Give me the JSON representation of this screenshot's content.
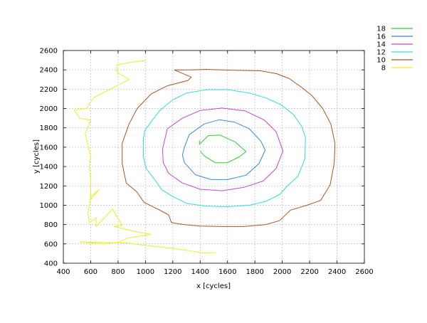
{
  "chart_data": {
    "type": "line",
    "title": "",
    "xlabel": "x [cycles]",
    "ylabel": "y [cycles]",
    "xlim": [
      400,
      2600
    ],
    "ylim": [
      400,
      2600
    ],
    "xticks": [
      400,
      600,
      800,
      1000,
      1200,
      1400,
      1600,
      1800,
      2000,
      2200,
      2400,
      2600
    ],
    "yticks": [
      400,
      600,
      800,
      1000,
      1200,
      1400,
      1600,
      1800,
      2000,
      2200,
      2400,
      2600
    ],
    "grid": true,
    "legend_position": "top-right",
    "series": [
      {
        "name": "18",
        "color": "#33cc33",
        "points": [
          [
            1395,
            1670
          ],
          [
            1395,
            1630
          ],
          [
            1460,
            1720
          ],
          [
            1545,
            1725
          ],
          [
            1655,
            1655
          ],
          [
            1735,
            1555
          ],
          [
            1685,
            1500
          ],
          [
            1600,
            1440
          ],
          [
            1510,
            1440
          ],
          [
            1430,
            1510
          ],
          [
            1400,
            1560
          ]
        ]
      },
      {
        "name": "16",
        "color": "#3388ee",
        "points": [
          [
            1285,
            1600
          ],
          [
            1320,
            1730
          ],
          [
            1430,
            1840
          ],
          [
            1540,
            1885
          ],
          [
            1650,
            1860
          ],
          [
            1760,
            1790
          ],
          [
            1845,
            1660
          ],
          [
            1875,
            1570
          ],
          [
            1830,
            1430
          ],
          [
            1735,
            1310
          ],
          [
            1600,
            1265
          ],
          [
            1480,
            1265
          ],
          [
            1365,
            1315
          ],
          [
            1285,
            1440
          ],
          [
            1270,
            1520
          ],
          [
            1285,
            1600
          ]
        ]
      },
      {
        "name": "14",
        "color": "#cc44cc",
        "points": [
          [
            1125,
            1580
          ],
          [
            1160,
            1790
          ],
          [
            1270,
            1900
          ],
          [
            1400,
            1980
          ],
          [
            1560,
            2005
          ],
          [
            1730,
            1975
          ],
          [
            1870,
            1880
          ],
          [
            1955,
            1760
          ],
          [
            2005,
            1560
          ],
          [
            1955,
            1380
          ],
          [
            1860,
            1250
          ],
          [
            1720,
            1185
          ],
          [
            1560,
            1150
          ],
          [
            1400,
            1165
          ],
          [
            1270,
            1230
          ],
          [
            1170,
            1330
          ],
          [
            1130,
            1440
          ],
          [
            1125,
            1580
          ]
        ]
      },
      {
        "name": "12",
        "color": "#33dddd",
        "points": [
          [
            985,
            1680
          ],
          [
            995,
            1770
          ],
          [
            1050,
            1880
          ],
          [
            1105,
            1980
          ],
          [
            1200,
            2090
          ],
          [
            1300,
            2160
          ],
          [
            1450,
            2195
          ],
          [
            1600,
            2195
          ],
          [
            1760,
            2160
          ],
          [
            1880,
            2110
          ],
          [
            1990,
            2040
          ],
          [
            2080,
            1940
          ],
          [
            2140,
            1820
          ],
          [
            2170,
            1700
          ],
          [
            2165,
            1480
          ],
          [
            2115,
            1300
          ],
          [
            2045,
            1210
          ],
          [
            1980,
            1110
          ],
          [
            1880,
            1040
          ],
          [
            1760,
            1000
          ],
          [
            1600,
            985
          ],
          [
            1440,
            990
          ],
          [
            1300,
            1020
          ],
          [
            1200,
            1090
          ],
          [
            1120,
            1160
          ],
          [
            1065,
            1270
          ],
          [
            1005,
            1380
          ],
          [
            985,
            1500
          ],
          [
            985,
            1680
          ]
        ]
      },
      {
        "name": "10",
        "color": "#aa5522",
        "points": [
          [
            1210,
            2400
          ],
          [
            1335,
            2325
          ],
          [
            1310,
            2290
          ],
          [
            1160,
            2235
          ],
          [
            1040,
            2150
          ],
          [
            940,
            2000
          ],
          [
            880,
            1840
          ],
          [
            830,
            1640
          ],
          [
            830,
            1430
          ],
          [
            860,
            1230
          ],
          [
            935,
            1140
          ],
          [
            990,
            1030
          ],
          [
            1090,
            960
          ],
          [
            1170,
            900
          ],
          [
            1190,
            820
          ],
          [
            1280,
            800
          ],
          [
            1400,
            785
          ],
          [
            1560,
            780
          ],
          [
            1720,
            780
          ],
          [
            1880,
            800
          ],
          [
            1980,
            840
          ],
          [
            2060,
            950
          ],
          [
            2180,
            1000
          ],
          [
            2280,
            1050
          ],
          [
            2350,
            1210
          ],
          [
            2380,
            1440
          ],
          [
            2385,
            1640
          ],
          [
            2355,
            1840
          ],
          [
            2295,
            2000
          ],
          [
            2220,
            2130
          ],
          [
            2140,
            2220
          ],
          [
            2050,
            2310
          ],
          [
            1960,
            2360
          ],
          [
            1840,
            2390
          ],
          [
            1680,
            2395
          ],
          [
            1560,
            2400
          ],
          [
            1440,
            2405
          ],
          [
            1330,
            2400
          ],
          [
            1210,
            2400
          ]
        ]
      },
      {
        "name": "8",
        "color": "#eeee22",
        "points": [
          [
            1000,
            2495
          ],
          [
            900,
            2480
          ],
          [
            790,
            2450
          ],
          [
            790,
            2380
          ],
          [
            880,
            2300
          ],
          [
            740,
            2200
          ],
          [
            620,
            2110
          ],
          [
            570,
            2000
          ],
          [
            480,
            1985
          ],
          [
            520,
            1900
          ],
          [
            600,
            1880
          ],
          [
            560,
            1740
          ],
          [
            600,
            1500
          ],
          [
            590,
            1400
          ],
          [
            600,
            1240
          ],
          [
            600,
            1060
          ],
          [
            660,
            1160
          ],
          [
            600,
            1090
          ],
          [
            580,
            920
          ],
          [
            590,
            820
          ],
          [
            640,
            870
          ],
          [
            640,
            780
          ],
          [
            700,
            870
          ],
          [
            760,
            960
          ],
          [
            800,
            860
          ],
          [
            830,
            790
          ],
          [
            770,
            780
          ],
          [
            950,
            720
          ],
          [
            1040,
            700
          ],
          [
            870,
            660
          ],
          [
            810,
            620
          ],
          [
            690,
            600
          ],
          [
            520,
            620
          ],
          [
            860,
            610
          ],
          [
            1030,
            580
          ],
          [
            1160,
            560
          ],
          [
            1320,
            530
          ],
          [
            1420,
            505
          ],
          [
            1510,
            510
          ]
        ]
      }
    ]
  }
}
